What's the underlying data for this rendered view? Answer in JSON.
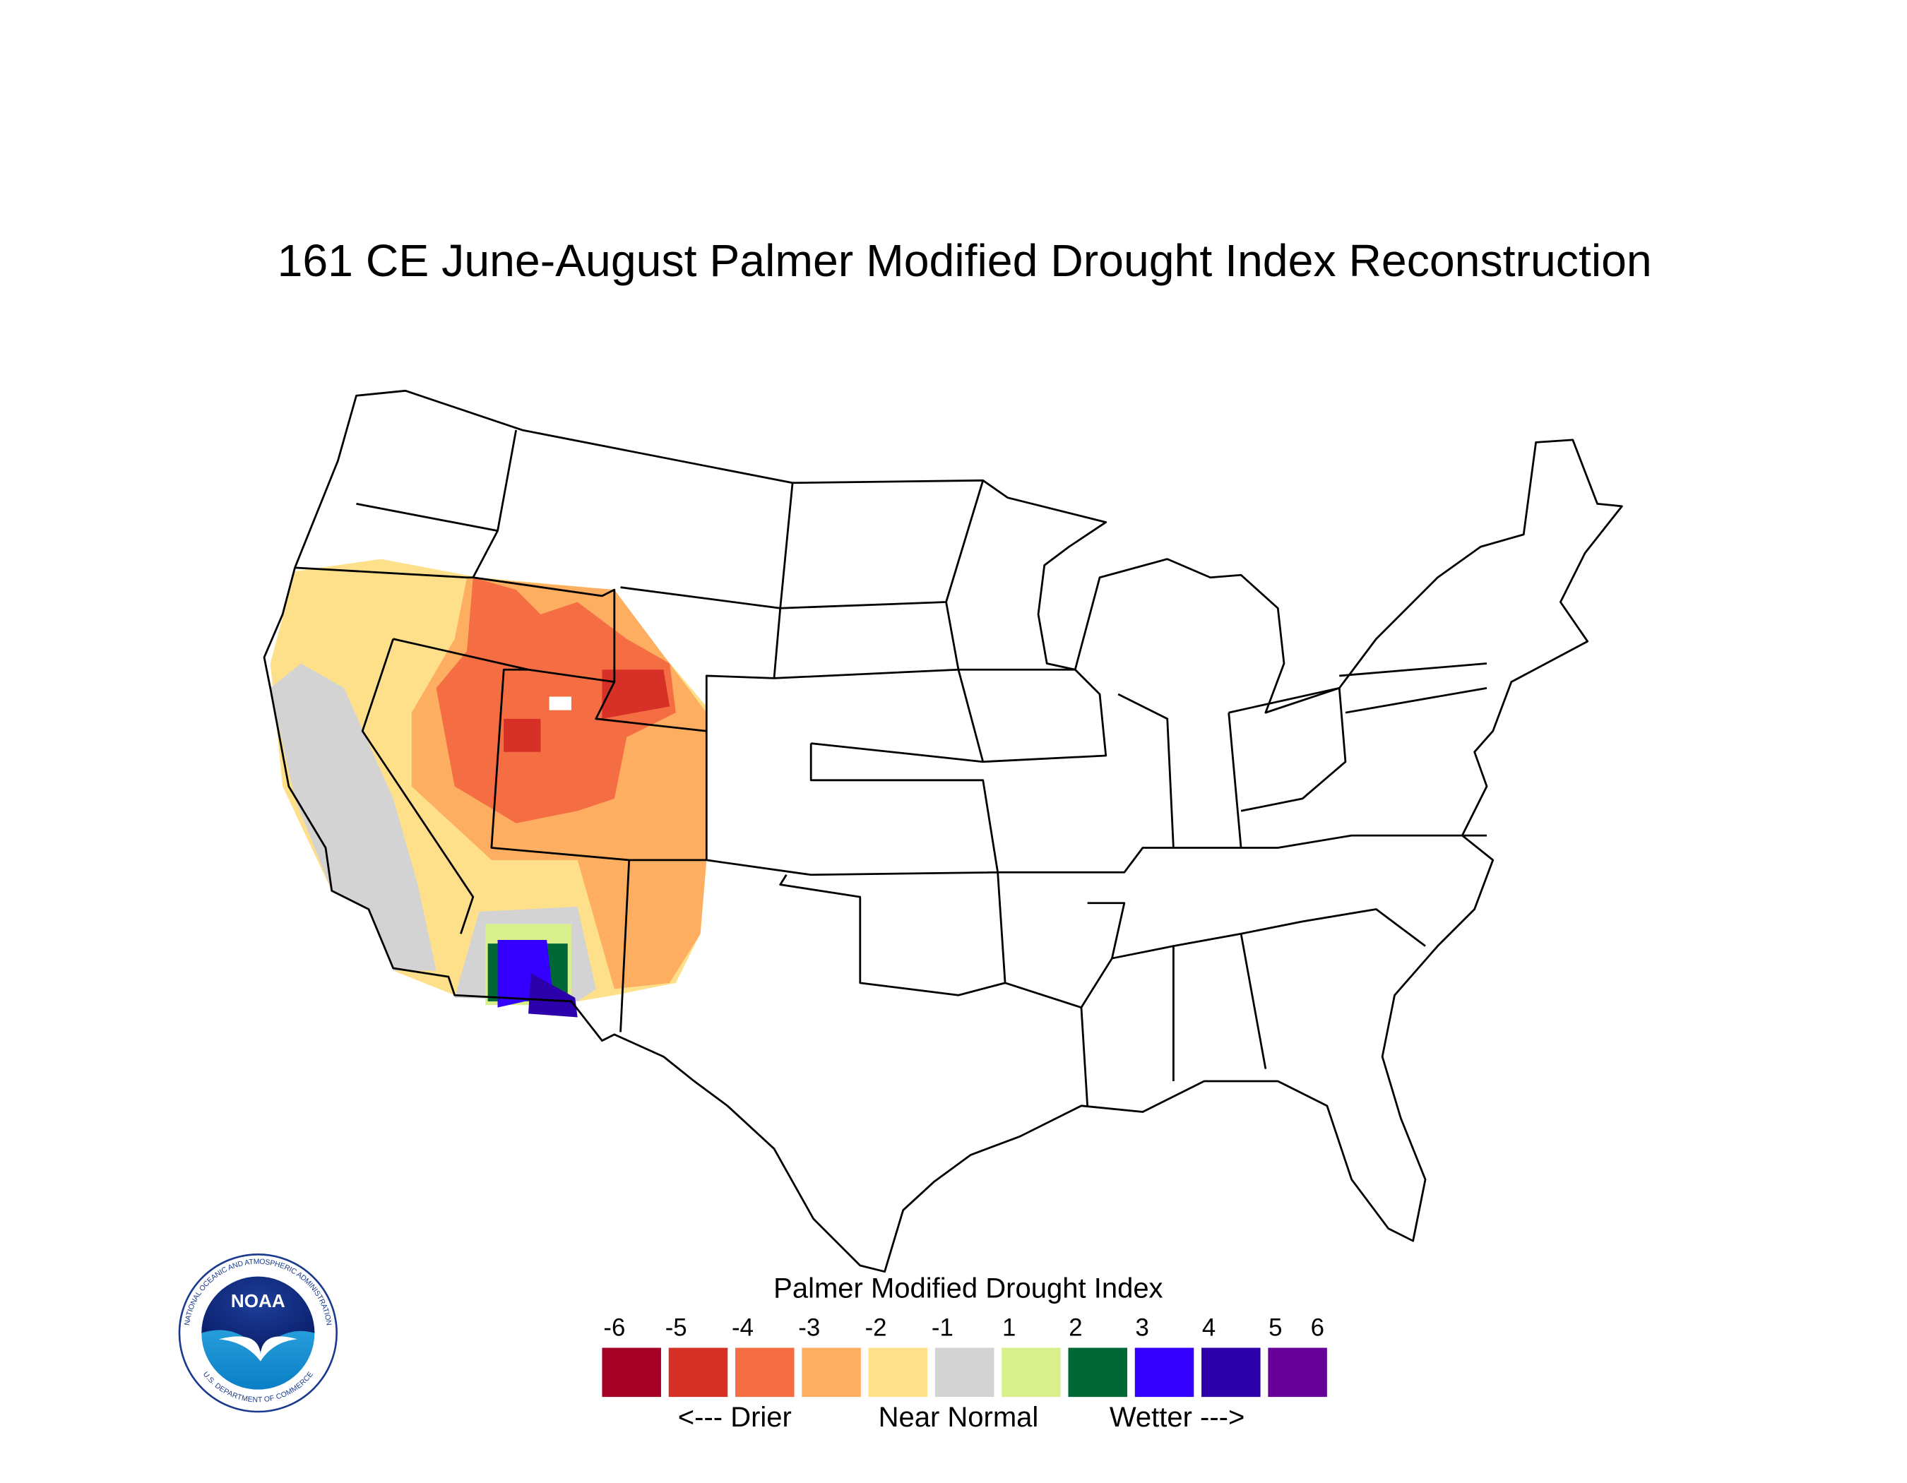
{
  "title": "161 CE  June-August  Palmer Modified Drought Index Reconstruction",
  "legend": {
    "title": "Palmer Modified Drought Index",
    "ticks": [
      -6,
      -5,
      -4,
      -3,
      -2,
      -1,
      1,
      2,
      3,
      4,
      5,
      6
    ],
    "colors": [
      "#a50026",
      "#d73027",
      "#f46d43",
      "#fdae61",
      "#fee08b",
      "#d3d3d3",
      "#d9ef8b",
      "#006837",
      "#3300ff",
      "#2c00aa",
      "#660099"
    ],
    "labels": [
      "<--- Drier",
      "Near Normal",
      "Wetter --->"
    ]
  },
  "logo": {
    "text": "NOAA",
    "ring_top": "NATIONAL OCEANIC AND ATMOSPHERIC ADMINISTRATION",
    "ring_bottom": "U.S. DEPARTMENT OF COMMERCE"
  }
}
